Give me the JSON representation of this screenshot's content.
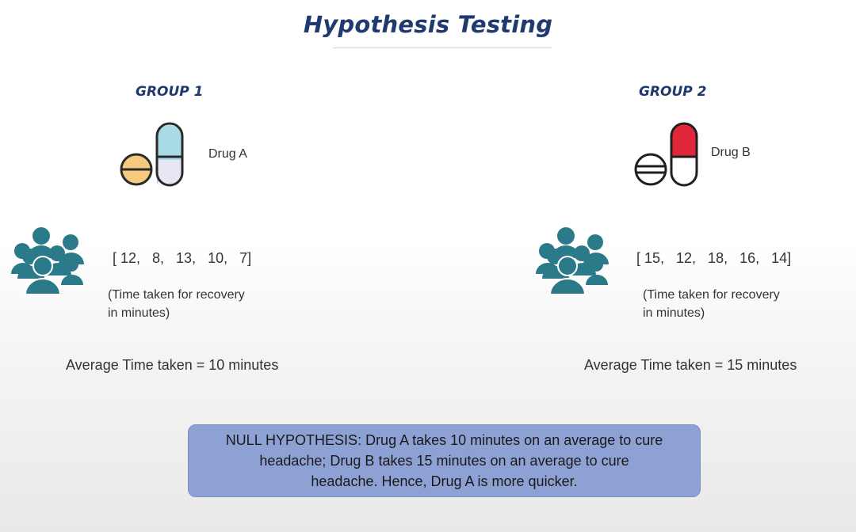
{
  "slide": {
    "title": "Hypothesis Testing"
  },
  "group1": {
    "label": "GROUP 1",
    "drug": "Drug A",
    "values": "[ 12,   8,   13,   10,   7]",
    "note_line1": "(Time taken for recovery",
    "note_line2": "in minutes)",
    "average": "Average Time taken  =  10 minutes"
  },
  "group2": {
    "label": "GROUP 2",
    "drug": "Drug B",
    "values": "[ 15,   12,   18,   16,   14]",
    "note_line1": "(Time taken for recovery",
    "note_line2": "in minutes)",
    "average": "Average Time taken  =  15 minutes"
  },
  "hypothesis": {
    "line1": "NULL HYPOTHESIS:  Drug A takes 10 minutes on an average to cure",
    "line2": "headache; Drug B takes 15 minutes on an average to cure",
    "line3": "headache. Hence, Drug A is more quicker."
  },
  "colors": {
    "title": "#1f3a6e",
    "people": "#2b7a8a",
    "capsule_a_top": "#a8dbe6",
    "capsule_b_top": "#e0283a",
    "tablet_a": "#f5c97e",
    "hypothesis_box": "#8ea1d4"
  },
  "icons": [
    "pills-icon",
    "people-group-icon"
  ]
}
